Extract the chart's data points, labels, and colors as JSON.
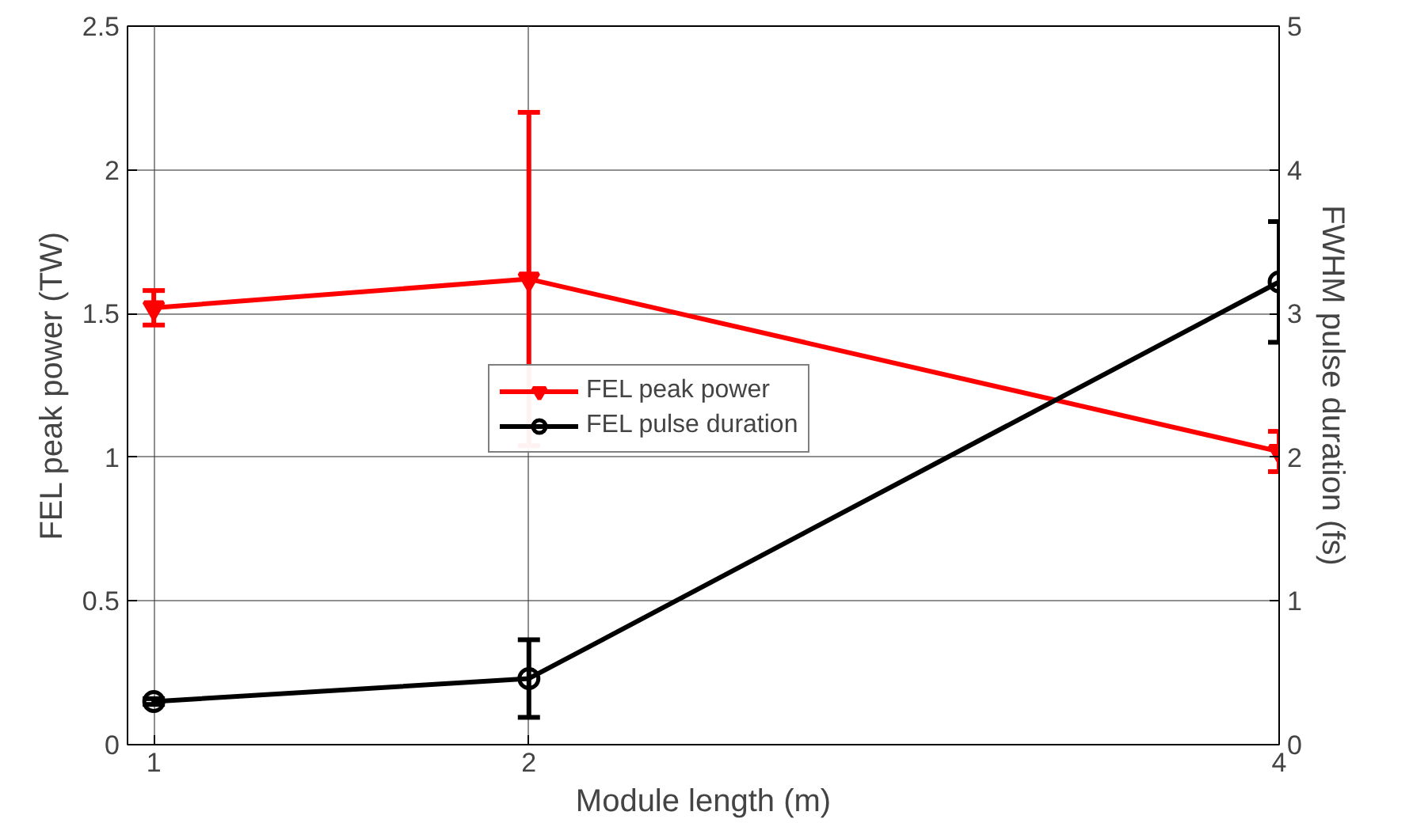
{
  "chart_data": {
    "type": "line",
    "xlabel": "Module length (m)",
    "ylabel": "FEL peak power (TW)",
    "y2label": "FWHM pulse duration (fs)",
    "x": [
      1,
      2,
      4
    ],
    "xlim": [
      0.93,
      4
    ],
    "xticks": [
      1,
      2,
      4
    ],
    "ylim": [
      0,
      2.5
    ],
    "yticks": [
      0,
      0.5,
      1,
      1.5,
      2,
      2.5
    ],
    "y2lim": [
      0,
      5
    ],
    "y2ticks": [
      0,
      1,
      2,
      3,
      4,
      5
    ],
    "series": [
      {
        "name": "FEL peak power",
        "color": "#ff0000",
        "values": [
          1.52,
          1.62,
          1.02
        ],
        "errors": [
          0.06,
          0.58,
          0.07
        ],
        "marker": "triangle"
      },
      {
        "name": "FEL pulse duration",
        "color": "#000000",
        "values": [
          0.3,
          0.46,
          3.22
        ],
        "errors": [
          0.02,
          0.27,
          0.42
        ],
        "marker": "circle",
        "axis": "y2"
      }
    ],
    "grid": true,
    "legend": "center",
    "line_style": "solid"
  }
}
